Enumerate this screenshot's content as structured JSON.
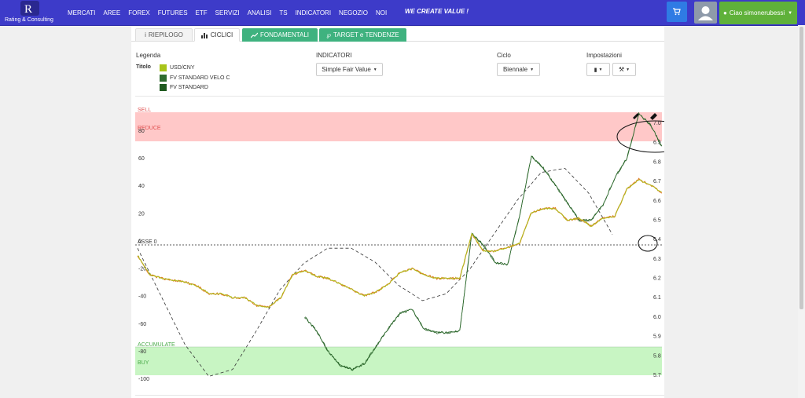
{
  "header": {
    "logo_sub": "Rating & Consulting",
    "nav": [
      "MERCATI",
      "AREE",
      "FOREX",
      "FUTURES",
      "ETF",
      "SERVIZI",
      "ANALISI",
      "TS",
      "INDICATORI",
      "NEGOZIO",
      "NOI"
    ],
    "slogan": "WE CREATE VALUE !",
    "user_label": "Ciao simonerubessi"
  },
  "tabs": {
    "riepilogo": "RIEPILOGO",
    "ciclici": "CICLICI",
    "fondamentali": "FONDAMENTALI",
    "target": "TARGET e TENDENZE"
  },
  "controls": {
    "legenda_label": "Legenda",
    "titolo_label": "Titolo",
    "indicatori_label": "INDICATORI",
    "indicatori_value": "Simple Fair Value",
    "ciclo_label": "Ciclo",
    "ciclo_value": "Biennale",
    "impostazioni_label": "Impostazioni"
  },
  "legend": [
    {
      "label": "USD/CNY",
      "color": "#a8c41a"
    },
    {
      "label": "FV STANDARD VELO C",
      "color": "#2e6b2e"
    },
    {
      "label": "FV STANDARD",
      "color": "#1f5a1f"
    }
  ],
  "chart_data": {
    "type": "line",
    "y_left_ticks": [
      "80",
      "60",
      "40",
      "20",
      "0",
      "-20",
      "-40",
      "-60",
      "-80",
      "-100"
    ],
    "y_right_ticks": [
      "7.0",
      "6.9",
      "6.8",
      "6.7",
      "6.6",
      "6.5",
      "6.4",
      "6.3",
      "6.2",
      "6.1",
      "6.0",
      "5.9",
      "5.8",
      "5.7"
    ],
    "y_left_range": [
      -100,
      80
    ],
    "y_right_range": [
      5.7,
      7.0
    ],
    "zones": {
      "sell": "SELL",
      "reduce": "REDUCE",
      "asse": "ASSE 0",
      "accumulate": "ACCUMULATE",
      "buy": "BUY"
    },
    "series": [
      {
        "name": "USD/CNY",
        "color": "#a8c41a",
        "values": [
          6.32,
          6.22,
          6.2,
          6.19,
          6.18,
          6.16,
          6.12,
          6.12,
          6.1,
          6.1,
          6.06,
          6.05,
          6.1,
          6.22,
          6.24,
          6.21,
          6.2,
          6.17,
          6.14,
          6.11,
          6.13,
          6.17,
          6.23,
          6.25,
          6.22,
          6.2,
          6.2,
          6.2,
          6.43,
          6.34,
          6.34,
          6.36,
          6.38,
          6.54,
          6.56,
          6.56,
          6.5,
          6.51,
          6.47,
          6.51,
          6.52,
          6.66,
          6.71,
          6.68,
          6.64
        ]
      },
      {
        "name": "FV STANDARD VELO C",
        "color": "#2e6b2e",
        "values": [
          null,
          null,
          null,
          null,
          null,
          null,
          null,
          null,
          null,
          null,
          null,
          null,
          null,
          null,
          6.0,
          5.93,
          5.82,
          5.75,
          5.73,
          5.76,
          5.85,
          5.94,
          6.02,
          6.04,
          5.94,
          5.92,
          5.92,
          5.93,
          6.43,
          6.37,
          6.28,
          6.27,
          6.52,
          6.83,
          6.77,
          6.68,
          6.59,
          6.5,
          6.5,
          6.58,
          6.72,
          6.82,
          7.05,
          6.99,
          6.87
        ]
      },
      {
        "name": "FV STANDARD",
        "color": "#1f5a1f",
        "values": [
          null,
          null,
          null,
          null,
          null,
          null,
          null,
          null,
          null,
          null,
          null,
          null,
          null,
          null,
          6.0,
          5.93,
          5.82,
          5.75,
          5.73,
          5.76,
          5.85,
          5.94,
          6.02,
          6.04,
          5.94,
          5.92,
          5.92,
          5.93,
          6.43,
          6.37,
          6.28,
          6.27,
          6.52,
          6.83,
          6.77,
          6.68,
          6.59,
          6.5,
          6.5,
          6.58,
          6.72,
          6.82,
          7.05,
          6.99,
          6.87
        ]
      },
      {
        "name": "Simple Fair Value (cycle)",
        "color": "#333333",
        "values_left_axis": [
          -5,
          -40,
          -75,
          -98,
          -93,
          -65,
          -35,
          -16,
          -5,
          -5,
          -15,
          -32,
          -43,
          -38,
          -20,
          5,
          30,
          50,
          53,
          35,
          5
        ]
      }
    ]
  }
}
